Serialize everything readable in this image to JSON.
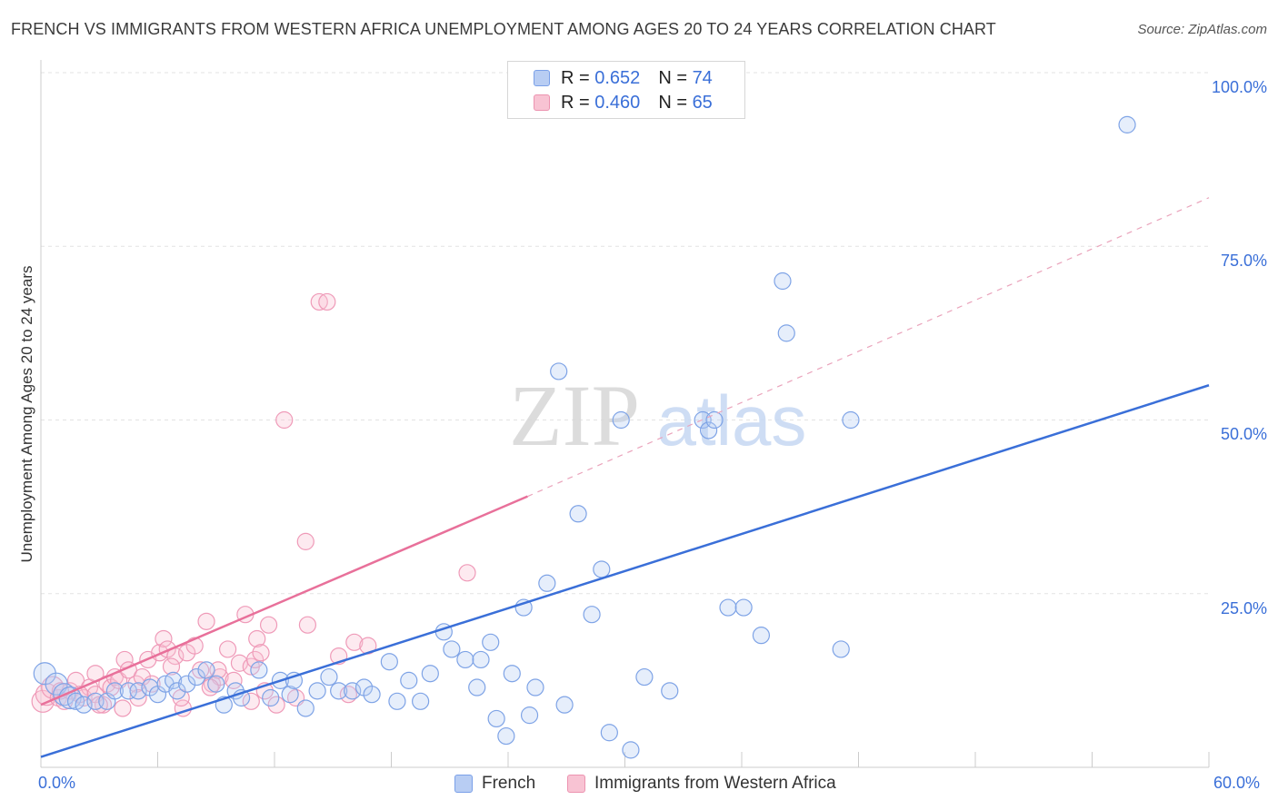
{
  "title": "FRENCH VS IMMIGRANTS FROM WESTERN AFRICA UNEMPLOYMENT AMONG AGES 20 TO 24 YEARS CORRELATION CHART",
  "source": "Source: ZipAtlas.com",
  "watermark": {
    "zip": "ZIP",
    "atlas": "atlas"
  },
  "colors": {
    "blue": "#3a6fd8",
    "blue_fill": "#b8cdf3",
    "pink": "#e8709a",
    "pink_fill": "#f8c3d3"
  },
  "legend": {
    "rows": [
      {
        "r_label": "R =",
        "r_value": "0.652",
        "n_label": "N =",
        "n_value": "74"
      },
      {
        "r_label": "R =",
        "r_value": "0.460",
        "n_label": "N =",
        "n_value": "65"
      }
    ]
  },
  "bottom_legend": {
    "series1": "French",
    "series2": "Immigrants from Western Africa"
  },
  "chart_data": {
    "type": "scatter",
    "title": "FRENCH VS IMMIGRANTS FROM WESTERN AFRICA UNEMPLOYMENT AMONG AGES 20 TO 24 YEARS CORRELATION CHART",
    "xlabel": "",
    "ylabel": "Unemployment Among Ages 20 to 24 years",
    "xlim": [
      0,
      60
    ],
    "ylim": [
      0,
      100
    ],
    "x_tick_labels": [
      "0.0%",
      "60.0%"
    ],
    "y_tick_labels": [
      "100.0%",
      "75.0%",
      "50.0%",
      "25.0%"
    ],
    "y_ticks": [
      100,
      75,
      50,
      25
    ],
    "grid": true,
    "legend_position": "top-center",
    "series": [
      {
        "name": "French",
        "r": 0.652,
        "n": 74,
        "trend": {
          "x": [
            0,
            60
          ],
          "y": [
            1.5,
            55
          ]
        },
        "points": [
          [
            0.2,
            13.5
          ],
          [
            0.8,
            12
          ],
          [
            1.2,
            10.5
          ],
          [
            1.5,
            10
          ],
          [
            1.8,
            9.5
          ],
          [
            2.2,
            9
          ],
          [
            2.8,
            9.5
          ],
          [
            3.4,
            9.5
          ],
          [
            3.8,
            11
          ],
          [
            4.5,
            11
          ],
          [
            5,
            11
          ],
          [
            5.6,
            11.5
          ],
          [
            6,
            10.5
          ],
          [
            6.4,
            12
          ],
          [
            6.8,
            12.5
          ],
          [
            7,
            11
          ],
          [
            7.5,
            12
          ],
          [
            8,
            13
          ],
          [
            8.5,
            14
          ],
          [
            9,
            12
          ],
          [
            9.4,
            9
          ],
          [
            10,
            11
          ],
          [
            10.3,
            10
          ],
          [
            11.2,
            14
          ],
          [
            11.8,
            10
          ],
          [
            12.3,
            12.5
          ],
          [
            12.8,
            10.5
          ],
          [
            13,
            12.5
          ],
          [
            13.6,
            8.5
          ],
          [
            14.2,
            11
          ],
          [
            14.8,
            13
          ],
          [
            15.3,
            11
          ],
          [
            16,
            11
          ],
          [
            16.6,
            11.5
          ],
          [
            17,
            10.5
          ],
          [
            17.9,
            15.2
          ],
          [
            18.3,
            9.5
          ],
          [
            18.9,
            12.5
          ],
          [
            19.5,
            9.5
          ],
          [
            20,
            13.5
          ],
          [
            20.7,
            19.5
          ],
          [
            21.1,
            17
          ],
          [
            21.8,
            15.5
          ],
          [
            22.4,
            11.5
          ],
          [
            22.6,
            15.5
          ],
          [
            23.1,
            18
          ],
          [
            23.4,
            7
          ],
          [
            23.9,
            4.5
          ],
          [
            24.2,
            13.5
          ],
          [
            24.8,
            23
          ],
          [
            25.1,
            7.5
          ],
          [
            25.4,
            11.5
          ],
          [
            26,
            26.5
          ],
          [
            26.6,
            57
          ],
          [
            26.9,
            9
          ],
          [
            27.6,
            36.5
          ],
          [
            28.3,
            22
          ],
          [
            28.8,
            28.5
          ],
          [
            29.2,
            5
          ],
          [
            29.8,
            50
          ],
          [
            30.3,
            2.5
          ],
          [
            31,
            13
          ],
          [
            32.3,
            11
          ],
          [
            34,
            50
          ],
          [
            34.3,
            48.5
          ],
          [
            34.6,
            50
          ],
          [
            35.3,
            23
          ],
          [
            36.1,
            23
          ],
          [
            37,
            19
          ],
          [
            38.1,
            70
          ],
          [
            38.3,
            62.5
          ],
          [
            41.1,
            17
          ],
          [
            41.6,
            50
          ],
          [
            55.8,
            92.5
          ]
        ]
      },
      {
        "name": "Immigrants from Western Africa",
        "r": 0.46,
        "n": 65,
        "trend": {
          "x": [
            0,
            25
          ],
          "y": [
            9,
            39
          ]
        },
        "trend_extension": {
          "x": [
            25,
            60
          ],
          "y": [
            39,
            82
          ]
        },
        "points": [
          [
            0.1,
            9.5
          ],
          [
            0.3,
            10.5
          ],
          [
            0.6,
            11.5
          ],
          [
            0.9,
            10
          ],
          [
            1.2,
            9.5
          ],
          [
            1.5,
            11
          ],
          [
            1.8,
            12.5
          ],
          [
            2.2,
            10
          ],
          [
            2.5,
            11.5
          ],
          [
            2.8,
            13.5
          ],
          [
            2.8,
            10.5
          ],
          [
            3.2,
            9
          ],
          [
            3.4,
            12
          ],
          [
            3.6,
            11.5
          ],
          [
            3.8,
            13
          ],
          [
            4,
            12.5
          ],
          [
            4.3,
            15.5
          ],
          [
            4.5,
            14
          ],
          [
            4.9,
            12
          ],
          [
            5.2,
            13
          ],
          [
            5.5,
            15.5
          ],
          [
            5.7,
            12
          ],
          [
            6.1,
            16.5
          ],
          [
            6.3,
            18.5
          ],
          [
            6.5,
            17
          ],
          [
            6.9,
            16
          ],
          [
            7.3,
            8.5
          ],
          [
            7.5,
            16.5
          ],
          [
            7.9,
            17.5
          ],
          [
            8.2,
            14
          ],
          [
            8.5,
            21
          ],
          [
            8.8,
            12
          ],
          [
            9.2,
            13
          ],
          [
            9.6,
            17
          ],
          [
            9.9,
            12.5
          ],
          [
            10.2,
            15
          ],
          [
            10.5,
            22
          ],
          [
            10.8,
            14.5
          ],
          [
            11,
            15.5
          ],
          [
            11.1,
            18.5
          ],
          [
            11.3,
            16.5
          ],
          [
            11.5,
            11
          ],
          [
            11.7,
            20.5
          ],
          [
            12.1,
            9
          ],
          [
            12.5,
            50
          ],
          [
            13.1,
            10
          ],
          [
            13.7,
            20.5
          ],
          [
            14.3,
            67
          ],
          [
            14.7,
            67
          ],
          [
            15.3,
            16
          ],
          [
            15.8,
            10.5
          ],
          [
            16.1,
            18
          ],
          [
            16.8,
            17.5
          ],
          [
            21.9,
            28
          ],
          [
            13.6,
            32.5
          ],
          [
            9.1,
            14
          ],
          [
            7.2,
            10
          ],
          [
            5,
            10
          ],
          [
            3,
            9
          ],
          [
            2,
            10.5
          ],
          [
            1,
            11
          ],
          [
            6.7,
            14.5
          ],
          [
            8.7,
            11.5
          ],
          [
            4.2,
            8.5
          ],
          [
            10.8,
            9.5
          ]
        ]
      }
    ]
  }
}
